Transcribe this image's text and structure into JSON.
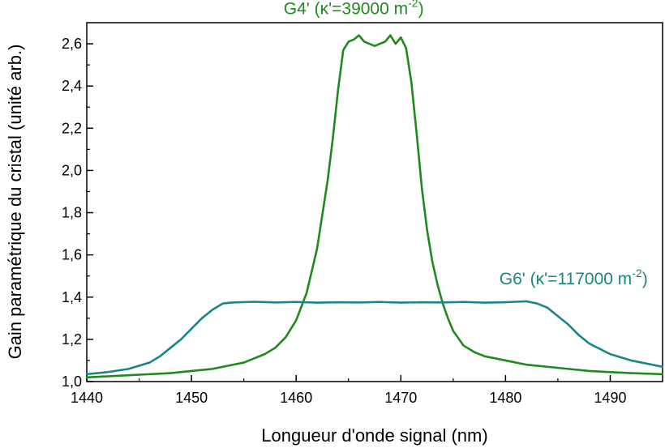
{
  "chart_data": {
    "type": "line",
    "title": "",
    "xlabel": "Longueur d'onde signal (nm)",
    "ylabel": "Gain paramétrique du cristal (unité arb.)",
    "xlim": [
      1440,
      1495
    ],
    "ylim": [
      1.0,
      2.7
    ],
    "xticks": [
      1440,
      1450,
      1460,
      1470,
      1480,
      1490
    ],
    "xtick_labels": [
      "1440",
      "1450",
      "1460",
      "1470",
      "1480",
      "1490"
    ],
    "yticks": [
      1.0,
      1.2,
      1.4,
      1.6,
      1.8,
      2.0,
      2.2,
      2.4,
      2.6
    ],
    "ytick_labels": [
      "1,0",
      "1,2",
      "1,4",
      "1,6",
      "1,8",
      "2,0",
      "2,2",
      "2,4",
      "2,6"
    ],
    "grid": false,
    "legend": "none",
    "series": [
      {
        "color": "#1e8a1e",
        "x": [
          1440,
          1442,
          1444,
          1446,
          1448,
          1450,
          1452,
          1454,
          1455,
          1456,
          1457,
          1458,
          1459,
          1460,
          1461,
          1462,
          1463,
          1463.5,
          1464,
          1464.5,
          1465,
          1465.5,
          1466,
          1466.5,
          1467,
          1467.5,
          1468,
          1468.5,
          1469,
          1469.5,
          1470,
          1470.5,
          1471,
          1471.5,
          1472,
          1472.5,
          1473,
          1473.5,
          1474,
          1474.5,
          1475,
          1476,
          1477,
          1478,
          1480,
          1482,
          1484,
          1486,
          1488,
          1490,
          1492,
          1495
        ],
        "y": [
          1.02,
          1.025,
          1.03,
          1.035,
          1.04,
          1.05,
          1.06,
          1.08,
          1.09,
          1.11,
          1.13,
          1.16,
          1.21,
          1.29,
          1.42,
          1.63,
          1.95,
          2.15,
          2.38,
          2.57,
          2.61,
          2.62,
          2.64,
          2.61,
          2.6,
          2.59,
          2.6,
          2.61,
          2.64,
          2.6,
          2.63,
          2.58,
          2.42,
          2.18,
          1.92,
          1.72,
          1.57,
          1.46,
          1.37,
          1.3,
          1.24,
          1.17,
          1.14,
          1.12,
          1.1,
          1.08,
          1.07,
          1.06,
          1.05,
          1.045,
          1.04,
          1.035
        ]
      },
      {
        "color": "#1a8585",
        "x": [
          1440,
          1442,
          1444,
          1446,
          1447,
          1448,
          1449,
          1450,
          1451,
          1452,
          1453,
          1454,
          1456,
          1458,
          1460,
          1462,
          1464,
          1466,
          1468,
          1470,
          1472,
          1474,
          1476,
          1478,
          1480,
          1481,
          1482,
          1483,
          1484,
          1485,
          1486,
          1487,
          1488,
          1490,
          1492,
          1495
        ],
        "y": [
          1.035,
          1.045,
          1.06,
          1.09,
          1.12,
          1.16,
          1.2,
          1.25,
          1.3,
          1.34,
          1.37,
          1.375,
          1.378,
          1.375,
          1.377,
          1.374,
          1.376,
          1.375,
          1.377,
          1.374,
          1.376,
          1.375,
          1.377,
          1.374,
          1.376,
          1.378,
          1.38,
          1.37,
          1.35,
          1.31,
          1.27,
          1.22,
          1.18,
          1.13,
          1.1,
          1.07
        ]
      }
    ],
    "annotations": [
      {
        "text": "G4' (κ'=39000 m",
        "superscript": "-2",
        "suffix": ")",
        "color": "#1e8a1e",
        "x": 1465.5,
        "y": 2.74
      },
      {
        "text": "G6' (κ'=117000 m",
        "superscript": "-2",
        "suffix": ")",
        "color": "#1a8585",
        "x": 1486.5,
        "y": 1.46
      }
    ]
  }
}
